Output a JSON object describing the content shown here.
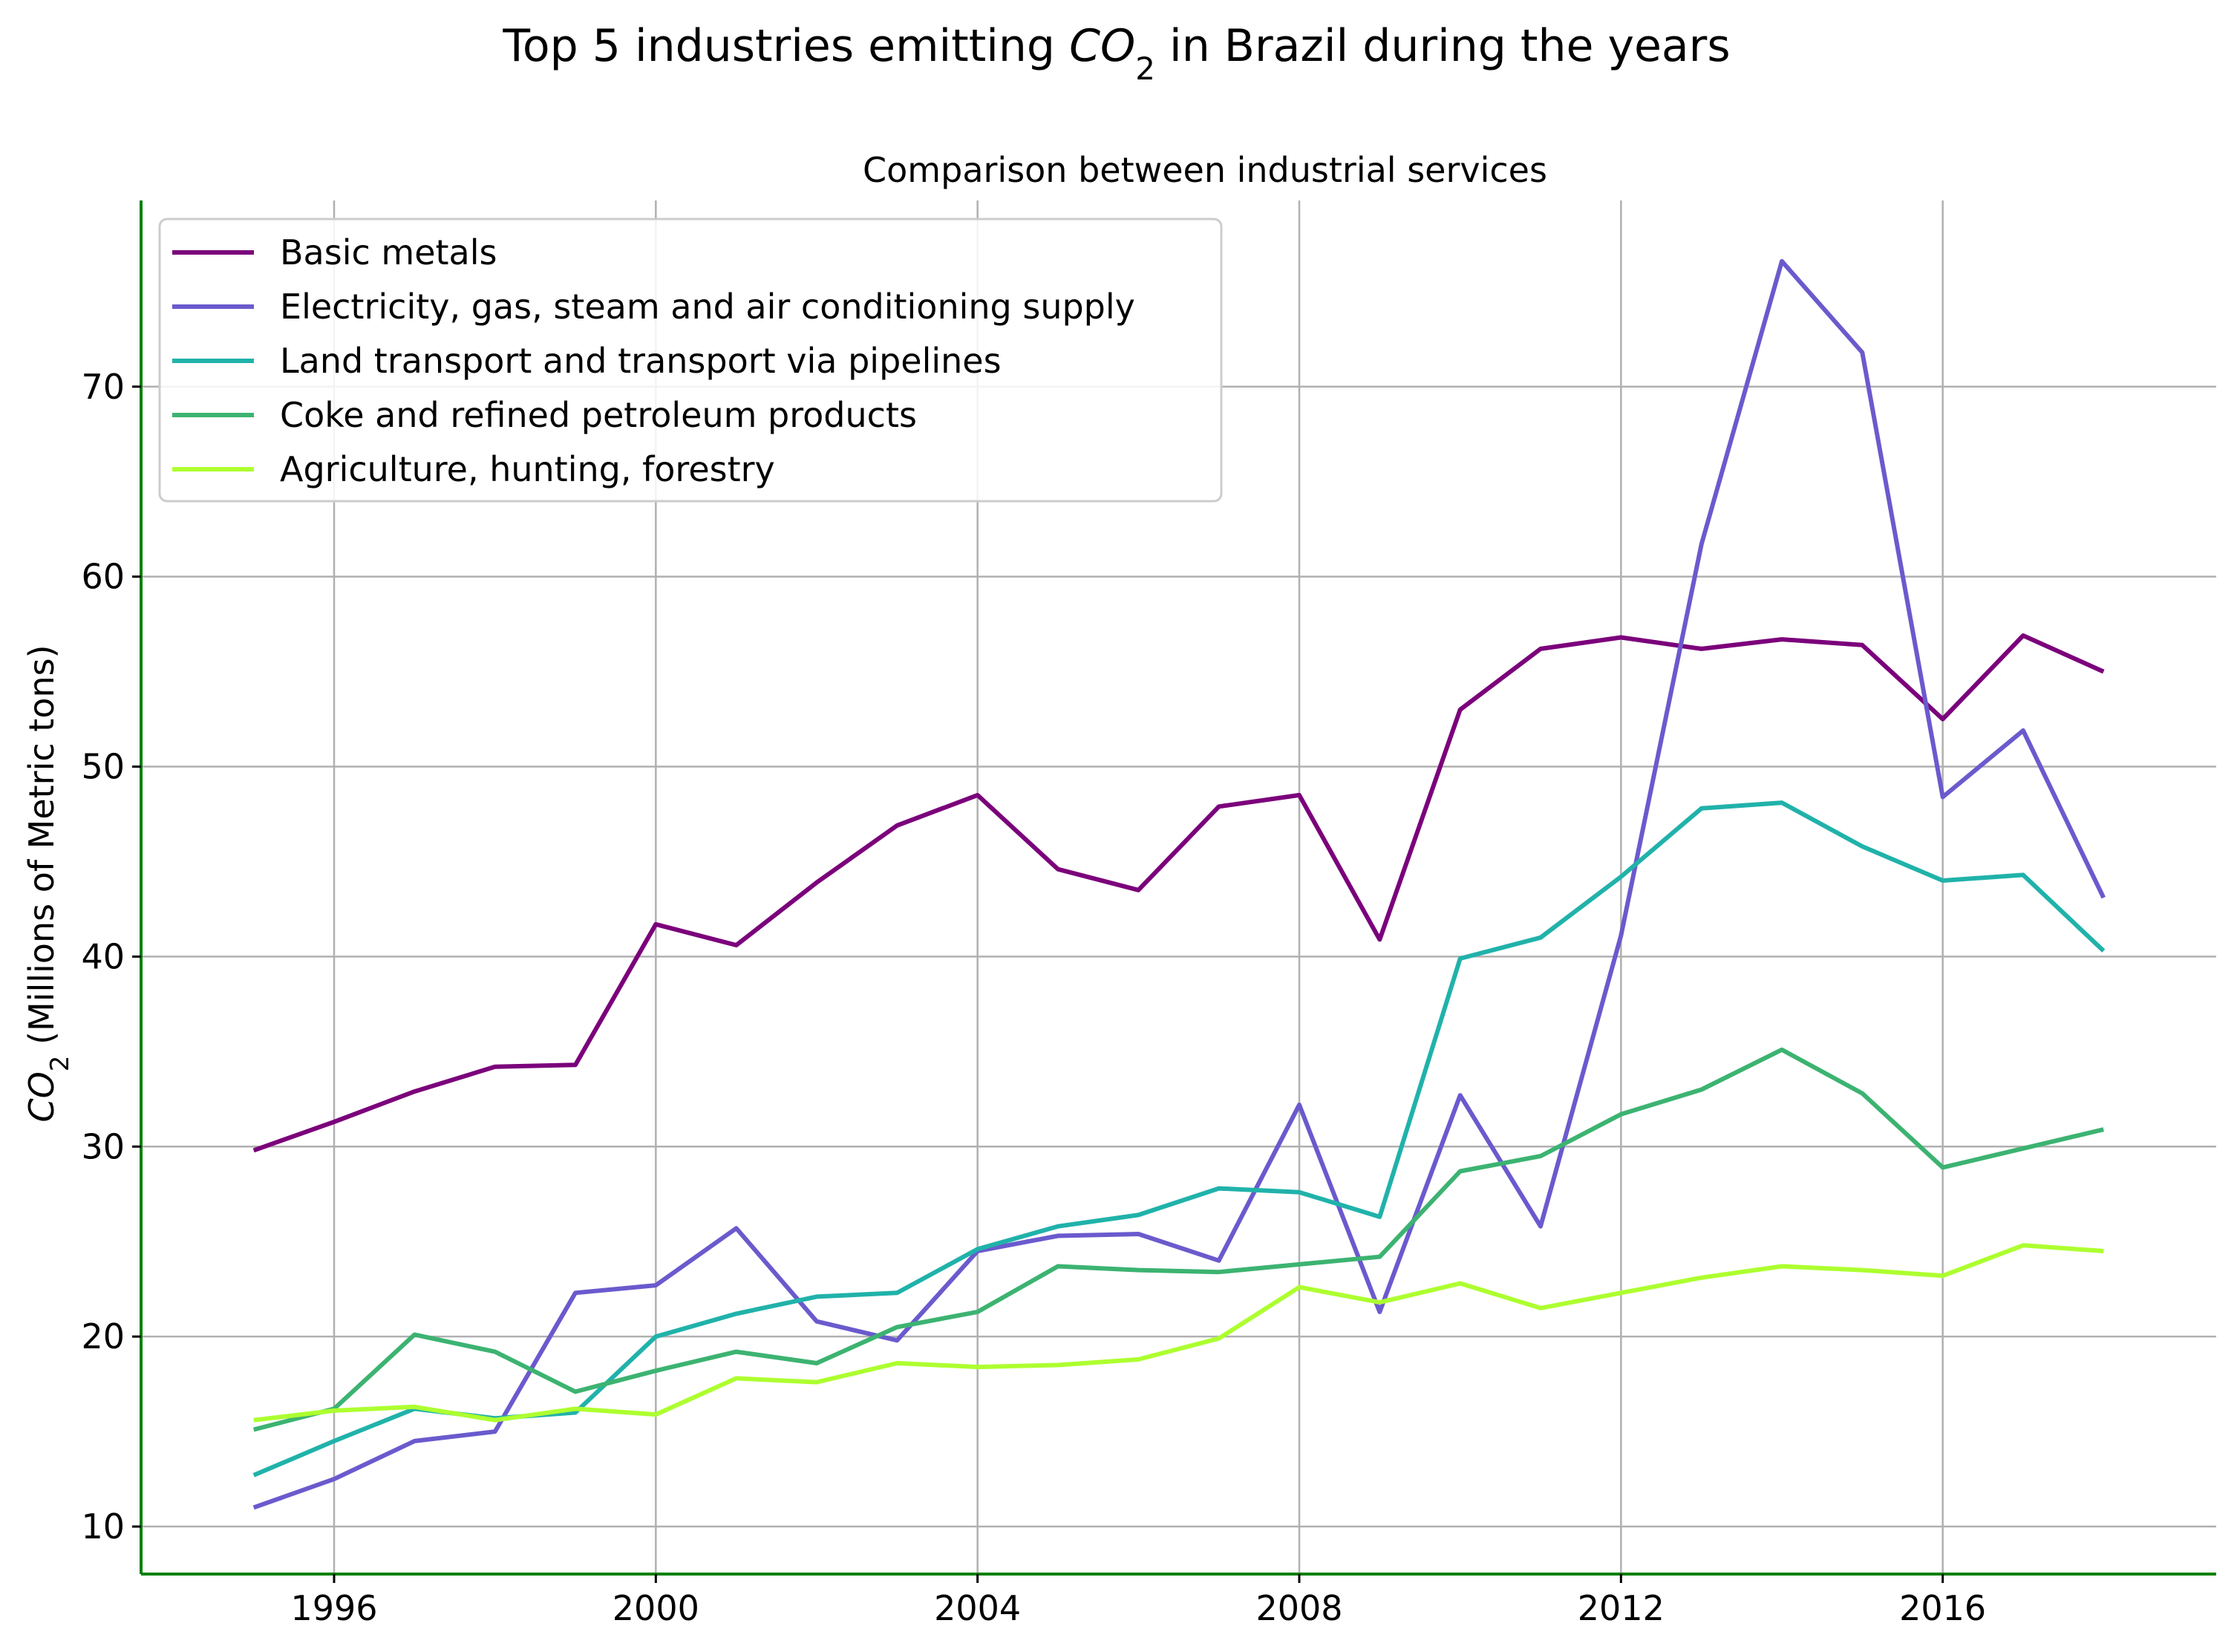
{
  "chart_data": {
    "type": "line",
    "title": "Top 5 industries emitting CO₂ in Brazil during the years",
    "title_parts": {
      "prefix": "Top 5 industries emitting ",
      "italic": "CO",
      "subscript": "2",
      "suffix": " in Brazil during the years"
    },
    "subtitle": "Comparison between industrial services",
    "xlabel": "",
    "ylabel": "CO₂ (Millions of Metric tons)",
    "ylabel_parts": {
      "italic": "CO",
      "subscript": "2",
      "suffix": " (Millions of Metric tons)"
    },
    "x": [
      1995,
      1996,
      1997,
      1998,
      1999,
      2000,
      2001,
      2002,
      2003,
      2004,
      2005,
      2006,
      2007,
      2008,
      2009,
      2010,
      2011,
      2012,
      2013,
      2014,
      2015,
      2016,
      2017,
      2018
    ],
    "xlim": [
      1993.6,
      2019.4
    ],
    "ylim": [
      7.5,
      79.8
    ],
    "xticks": [
      1996,
      2000,
      2004,
      2008,
      2012,
      2016
    ],
    "yticks": [
      10,
      20,
      30,
      40,
      50,
      60,
      70
    ],
    "grid": true,
    "legend_position": "top-left",
    "axis_color": "#008000",
    "series": [
      {
        "name": "Basic metals",
        "color": "#7b007b",
        "values": [
          29.8,
          31.3,
          32.9,
          34.2,
          34.3,
          41.7,
          40.6,
          43.9,
          46.9,
          48.5,
          44.6,
          43.5,
          47.9,
          48.5,
          40.9,
          53.0,
          56.2,
          56.8,
          56.2,
          56.7,
          56.4,
          52.5,
          56.9,
          55.0
        ]
      },
      {
        "name": "Electricity, gas, steam and air conditioning supply",
        "color": "#6a5acd",
        "values": [
          11.0,
          12.5,
          14.5,
          15.0,
          22.3,
          22.7,
          25.7,
          20.8,
          19.8,
          24.5,
          25.3,
          25.4,
          24.0,
          32.2,
          21.3,
          32.7,
          25.8,
          41.1,
          61.7,
          76.6,
          71.8,
          48.4,
          51.9,
          43.1
        ]
      },
      {
        "name": "Land transport and transport via pipelines",
        "color": "#20b2aa",
        "values": [
          12.7,
          14.5,
          16.2,
          15.7,
          16.0,
          20.0,
          21.2,
          22.1,
          22.3,
          24.6,
          25.8,
          26.4,
          27.8,
          27.6,
          26.3,
          39.9,
          41.0,
          44.2,
          47.8,
          48.1,
          45.8,
          44.0,
          44.3,
          40.3
        ]
      },
      {
        "name": "Coke and refined petroleum products",
        "color": "#3cb371",
        "values": [
          15.1,
          16.2,
          20.1,
          19.2,
          17.1,
          18.2,
          19.2,
          18.6,
          20.5,
          21.3,
          23.7,
          23.5,
          23.4,
          23.8,
          24.2,
          28.7,
          29.5,
          31.7,
          33.0,
          35.1,
          32.8,
          28.9,
          29.9,
          30.9
        ]
      },
      {
        "name": "Agriculture, hunting, forestry",
        "color": "#adff2f",
        "values": [
          15.6,
          16.1,
          16.3,
          15.6,
          16.2,
          15.9,
          17.8,
          17.6,
          18.6,
          18.4,
          18.5,
          18.8,
          19.9,
          22.6,
          21.8,
          22.8,
          21.5,
          22.3,
          23.1,
          23.7,
          23.5,
          23.2,
          24.8,
          24.5
        ]
      }
    ]
  }
}
